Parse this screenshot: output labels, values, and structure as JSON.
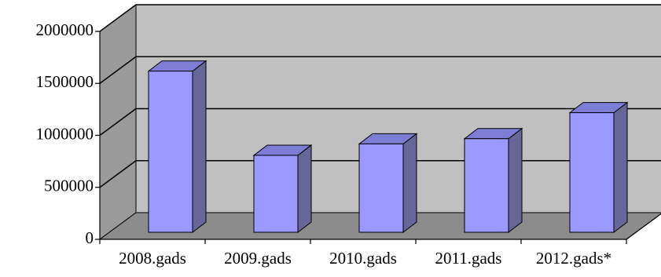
{
  "chart_data": {
    "type": "bar",
    "style": "3d-column",
    "title": "",
    "xlabel": "",
    "ylabel": "",
    "categories": [
      "2008.gads",
      "2009.gads",
      "2010.gads",
      "2011.gads",
      "2012.gads*"
    ],
    "values": [
      1550000,
      740000,
      850000,
      900000,
      1150000
    ],
    "ylim": [
      0,
      2000000
    ],
    "yticks": [
      0,
      500000,
      1000000,
      1500000,
      2000000
    ],
    "grid": true,
    "legend": "none",
    "colors": {
      "bar_front": "#9999ff",
      "bar_side": "#666699",
      "bar_top": "#7d7dd6",
      "back_wall": "#c0c0c0",
      "side_wall": "#9a9a9a",
      "floor": "#8c8c8c",
      "grid": "#000000"
    }
  }
}
